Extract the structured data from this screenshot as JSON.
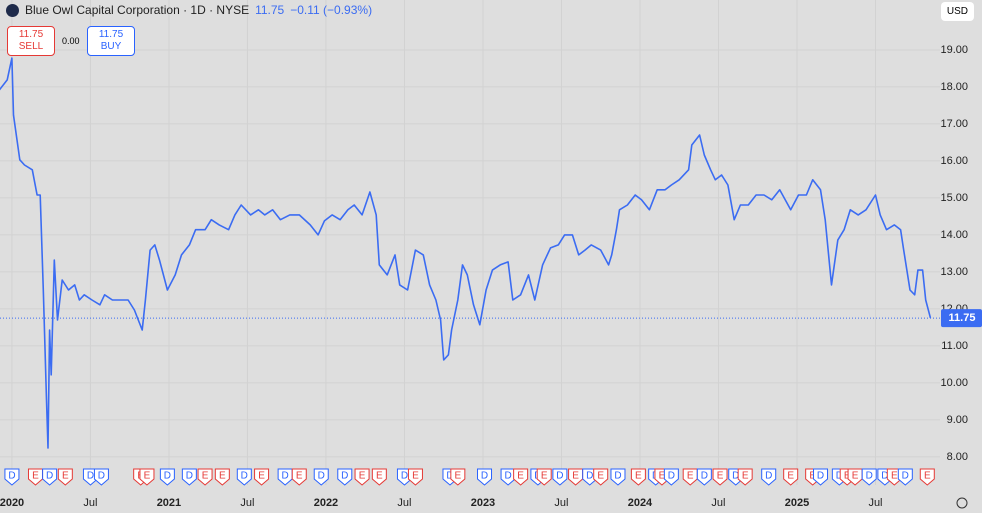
{
  "header": {
    "title": "Blue Owl Capital Corporation · 1D · NYSE",
    "price": "11.75",
    "change": "−0.11 (−0.93%)",
    "sell_price": "11.75",
    "sell_label": "SELL",
    "spread": "0.00",
    "buy_price": "11.75",
    "buy_label": "BUY",
    "currency": "USD"
  },
  "chart_data": {
    "type": "line",
    "x": [
      2019.92,
      2019.97,
      2020.0,
      2020.01,
      2020.05,
      2020.08,
      2020.13,
      2020.16,
      2020.18,
      2020.2,
      2020.22,
      2020.23,
      2020.24,
      2020.25,
      2020.27,
      2020.29,
      2020.32,
      2020.36,
      2020.4,
      2020.43,
      2020.46,
      2020.51,
      2020.56,
      2020.59,
      2020.64,
      2020.69,
      2020.74,
      2020.78,
      2020.83,
      2020.85,
      2020.88,
      2020.91,
      2020.94,
      2020.99,
      2021.04,
      2021.08,
      2021.13,
      2021.17,
      2021.23,
      2021.27,
      2021.32,
      2021.38,
      2021.42,
      2021.46,
      2021.52,
      2021.57,
      2021.61,
      2021.66,
      2021.71,
      2021.77,
      2021.83,
      2021.9,
      2021.95,
      2021.99,
      2022.04,
      2022.09,
      2022.14,
      2022.18,
      2022.23,
      2022.28,
      2022.32,
      2022.34,
      2022.39,
      2022.44,
      2022.47,
      2022.52,
      2022.57,
      2022.62,
      2022.66,
      2022.7,
      2022.73,
      2022.75,
      2022.78,
      2022.8,
      2022.84,
      2022.87,
      2022.9,
      2022.94,
      2022.98,
      2023.02,
      2023.06,
      2023.11,
      2023.16,
      2023.19,
      2023.24,
      2023.29,
      2023.33,
      2023.38,
      2023.43,
      2023.48,
      2023.52,
      2023.57,
      2023.61,
      2023.65,
      2023.69,
      2023.75,
      2023.8,
      2023.82,
      2023.85,
      2023.87,
      2023.92,
      2023.97,
      2024.01,
      2024.06,
      2024.11,
      2024.16,
      2024.2,
      2024.25,
      2024.31,
      2024.33,
      2024.38,
      2024.41,
      2024.45,
      2024.48,
      2024.52,
      2024.56,
      2024.6,
      2024.64,
      2024.69,
      2024.74,
      2024.79,
      2024.84,
      2024.89,
      2024.96,
      2025.01,
      2025.06,
      2025.1,
      2025.15,
      2025.18,
      2025.22,
      2025.26,
      2025.3,
      2025.34,
      2025.39,
      2025.44,
      2025.5,
      2025.53,
      2025.57,
      2025.62,
      2025.66,
      2025.68,
      2025.72,
      2025.75,
      2025.77,
      2025.8,
      2025.82,
      2025.85
    ],
    "series": [
      {
        "color": "#3b6cf2",
        "values": [
          17.92,
          18.19,
          18.78,
          17.24,
          16.03,
          15.89,
          15.76,
          15.08,
          15.08,
          12.51,
          9.54,
          8.24,
          11.43,
          10.22,
          13.32,
          11.7,
          12.78,
          12.51,
          12.65,
          12.24,
          12.38,
          12.24,
          12.11,
          12.38,
          12.24,
          12.24,
          12.24,
          11.97,
          11.43,
          12.24,
          13.59,
          13.73,
          13.32,
          12.51,
          12.92,
          13.46,
          13.73,
          14.14,
          14.14,
          14.41,
          14.27,
          14.14,
          14.54,
          14.81,
          14.54,
          14.68,
          14.54,
          14.68,
          14.41,
          14.54,
          14.54,
          14.27,
          14.0,
          14.38,
          14.54,
          14.41,
          14.68,
          14.81,
          14.54,
          15.16,
          14.54,
          13.19,
          12.92,
          13.46,
          12.65,
          12.51,
          13.59,
          13.46,
          12.65,
          12.24,
          11.7,
          10.62,
          10.76,
          11.43,
          12.24,
          13.19,
          12.92,
          12.11,
          11.57,
          12.51,
          13.05,
          13.19,
          13.27,
          12.24,
          12.38,
          12.92,
          12.24,
          13.19,
          13.65,
          13.73,
          14.0,
          14.0,
          13.46,
          13.59,
          13.73,
          13.59,
          13.19,
          13.46,
          14.14,
          14.68,
          14.81,
          15.08,
          14.95,
          14.68,
          15.22,
          15.22,
          15.35,
          15.49,
          15.76,
          16.43,
          16.7,
          16.16,
          15.76,
          15.49,
          15.62,
          15.35,
          14.41,
          14.81,
          14.81,
          15.08,
          15.08,
          14.95,
          15.22,
          14.68,
          15.08,
          15.08,
          15.49,
          15.22,
          14.41,
          12.65,
          13.86,
          14.14,
          14.68,
          14.54,
          14.68,
          15.08,
          14.54,
          14.14,
          14.27,
          14.14,
          13.59,
          12.51,
          12.38,
          13.05,
          13.05,
          12.24,
          11.76
        ]
      }
    ],
    "last_value": 11.75,
    "xlim": [
      2019.924,
      2025.911
    ],
    "ylim": [
      7.24,
      20.35
    ],
    "xticks": [
      2020,
      {
        "value": 2020.5,
        "label": "Jul"
      },
      2021,
      {
        "value": 2021.5,
        "label": "Jul"
      },
      2022,
      {
        "value": 2022.5,
        "label": "Jul"
      },
      2023,
      {
        "value": 2023.5,
        "label": "Jul"
      },
      2024,
      {
        "value": 2024.5,
        "label": "Jul"
      },
      2025,
      {
        "value": 2025.5,
        "label": "Jul"
      }
    ],
    "yticks": [
      {
        "value": 8,
        "label": "8.00"
      },
      {
        "value": 9,
        "label": "9.00"
      },
      {
        "value": 10,
        "label": "10.00"
      },
      {
        "value": 11,
        "label": "11.00"
      },
      {
        "value": 12,
        "label": "12.00"
      },
      {
        "value": 13,
        "label": "13.00"
      },
      {
        "value": 14,
        "label": "14.00"
      },
      {
        "value": 15,
        "label": "15.00"
      },
      {
        "value": 16,
        "label": "16.00"
      },
      {
        "value": 17,
        "label": "17.00"
      },
      {
        "value": 18,
        "label": "18.00"
      },
      {
        "value": 19,
        "label": "19.00"
      }
    ],
    "grid": true,
    "event_colors": {
      "D": "#2962ff",
      "E": "#e53935"
    },
    "events": [
      {
        "x": 2020.0,
        "label": "D"
      },
      {
        "x": 2020.15,
        "label": "E"
      },
      {
        "x": 2020.24,
        "label": "D"
      },
      {
        "x": 2020.34,
        "label": "E"
      },
      {
        "x": 2020.5,
        "label": "D"
      },
      {
        "x": 2020.57,
        "label": "D"
      },
      {
        "x": 2020.82,
        "label": "E"
      },
      {
        "x": 2020.86,
        "label": "E"
      },
      {
        "x": 2020.99,
        "label": "D"
      },
      {
        "x": 2021.13,
        "label": "D"
      },
      {
        "x": 2021.23,
        "label": "E"
      },
      {
        "x": 2021.34,
        "label": "E"
      },
      {
        "x": 2021.48,
        "label": "D"
      },
      {
        "x": 2021.59,
        "label": "E"
      },
      {
        "x": 2021.74,
        "label": "D"
      },
      {
        "x": 2021.83,
        "label": "E"
      },
      {
        "x": 2021.97,
        "label": "D"
      },
      {
        "x": 2022.12,
        "label": "D"
      },
      {
        "x": 2022.23,
        "label": "E"
      },
      {
        "x": 2022.34,
        "label": "E"
      },
      {
        "x": 2022.5,
        "label": "D"
      },
      {
        "x": 2022.57,
        "label": "E"
      },
      {
        "x": 2022.79,
        "label": "D"
      },
      {
        "x": 2022.84,
        "label": "E"
      },
      {
        "x": 2023.01,
        "label": "D"
      },
      {
        "x": 2023.16,
        "label": "D"
      },
      {
        "x": 2023.24,
        "label": "E"
      },
      {
        "x": 2023.35,
        "label": "D"
      },
      {
        "x": 2023.39,
        "label": "E"
      },
      {
        "x": 2023.49,
        "label": "D"
      },
      {
        "x": 2023.59,
        "label": "E"
      },
      {
        "x": 2023.68,
        "label": "D"
      },
      {
        "x": 2023.75,
        "label": "E"
      },
      {
        "x": 2023.86,
        "label": "D"
      },
      {
        "x": 2023.99,
        "label": "E"
      },
      {
        "x": 2024.1,
        "label": "D"
      },
      {
        "x": 2024.14,
        "label": "E"
      },
      {
        "x": 2024.2,
        "label": "D"
      },
      {
        "x": 2024.32,
        "label": "E"
      },
      {
        "x": 2024.41,
        "label": "D"
      },
      {
        "x": 2024.51,
        "label": "E"
      },
      {
        "x": 2024.61,
        "label": "D"
      },
      {
        "x": 2024.67,
        "label": "E"
      },
      {
        "x": 2024.82,
        "label": "D"
      },
      {
        "x": 2024.96,
        "label": "E"
      },
      {
        "x": 2025.1,
        "label": "E"
      },
      {
        "x": 2025.15,
        "label": "D"
      },
      {
        "x": 2025.27,
        "label": "D"
      },
      {
        "x": 2025.32,
        "label": "E"
      },
      {
        "x": 2025.37,
        "label": "E"
      },
      {
        "x": 2025.46,
        "label": "D"
      },
      {
        "x": 2025.56,
        "label": "D"
      },
      {
        "x": 2025.62,
        "label": "E"
      },
      {
        "x": 2025.69,
        "label": "D"
      },
      {
        "x": 2025.83,
        "label": "E"
      }
    ]
  }
}
